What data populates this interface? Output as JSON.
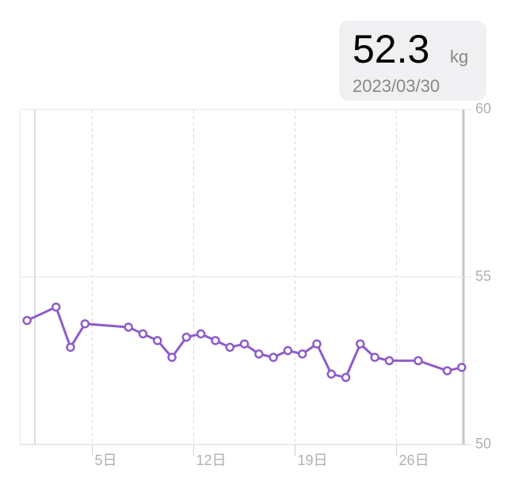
{
  "chart_data": {
    "type": "line",
    "tooltip": {
      "value": "52.3",
      "unit": "kg",
      "date": "2023/03/30"
    },
    "x": [
      0.5,
      2.5,
      3.5,
      4.5,
      7.5,
      8.5,
      9.5,
      10.5,
      11.5,
      12.5,
      13.5,
      14.5,
      15.5,
      16.5,
      17.5,
      18.5,
      19.5,
      20.5,
      21.5,
      22.5,
      23.5,
      24.5,
      25.5,
      27.5,
      29.5,
      30.5
    ],
    "series": [
      {
        "color": "#8e5cc9",
        "values": [
          53.7,
          54.1,
          52.9,
          53.6,
          53.5,
          53.3,
          53.1,
          52.6,
          53.2,
          53.3,
          53.1,
          52.9,
          53.0,
          52.7,
          52.6,
          52.8,
          52.7,
          53.0,
          52.1,
          52.0,
          53.0,
          52.6,
          52.5,
          52.5,
          52.2,
          52.3
        ]
      }
    ],
    "xlim": [
      0,
      31
    ],
    "xticks": [
      {
        "value": 5,
        "label": "5日"
      },
      {
        "value": 12,
        "label": "12日"
      },
      {
        "value": 19,
        "label": "19日"
      },
      {
        "value": 26,
        "label": "26日"
      }
    ],
    "ylim": [
      50,
      60
    ],
    "yticks": [
      50,
      55,
      60
    ],
    "grid": true
  }
}
